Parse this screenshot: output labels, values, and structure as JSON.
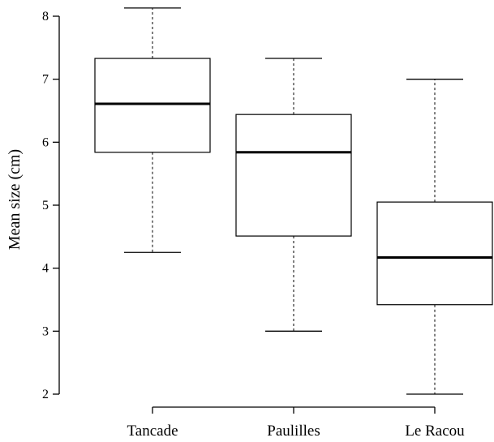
{
  "chart_data": {
    "type": "boxplot",
    "title": "",
    "xlabel": "",
    "ylabel": "Mean size (cm)",
    "ylim": [
      2,
      8
    ],
    "yticks": [
      2,
      3,
      4,
      5,
      6,
      7,
      8
    ],
    "grid": false,
    "categories": [
      "Tancade",
      "Paulilles",
      "Le Racou"
    ],
    "boxes": [
      {
        "category": "Tancade",
        "whisker_low": 4.25,
        "q1": 5.84,
        "median": 6.61,
        "q3": 7.33,
        "whisker_high": 8.13
      },
      {
        "category": "Paulilles",
        "whisker_low": 3.0,
        "q1": 4.51,
        "median": 5.84,
        "q3": 6.44,
        "whisker_high": 7.33
      },
      {
        "category": "Le Racou",
        "whisker_low": 2.0,
        "q1": 3.42,
        "median": 4.17,
        "q3": 5.05,
        "whisker_high": 7.0
      }
    ]
  }
}
